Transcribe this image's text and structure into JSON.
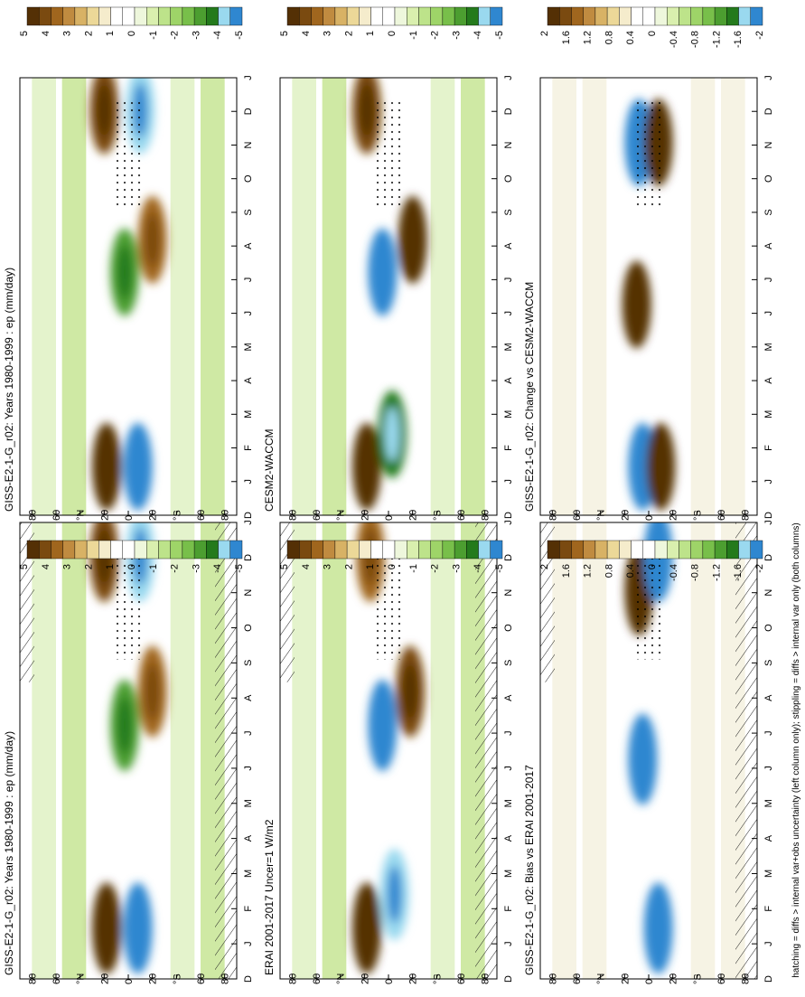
{
  "footnote": "hatching = diffs > internal var+obs uncertainty (left column only); stippling = diffs > internal var only (both columns)",
  "month_ticks": [
    "D",
    "J",
    "F",
    "M",
    "A",
    "M",
    "J",
    "J",
    "A",
    "S",
    "O",
    "N",
    "D",
    "J"
  ],
  "lat_ticks": [
    "80",
    "60",
    "°N",
    "20",
    "0",
    "20",
    "°S",
    "60",
    "80"
  ],
  "colorbars": {
    "mean": {
      "labels": [
        "5",
        "4",
        "3",
        "2",
        "1",
        "0",
        "-1",
        "-2",
        "-3",
        "-4",
        "-5"
      ],
      "colors": [
        "#543005",
        "#7a4a10",
        "#a0661e",
        "#c08b40",
        "#d8b265",
        "#ecd898",
        "#f5eccc",
        "#ffffff",
        "#ffffff",
        "#eef7dc",
        "#d9efae",
        "#bde38a",
        "#9ed468",
        "#78bf4a",
        "#4c9e30",
        "#247a1c",
        "#9ad9ef",
        "#2f87d0"
      ]
    },
    "diff": {
      "labels": [
        "2",
        "1.6",
        "1.2",
        "0.8",
        "0.4",
        "0",
        "-0.4",
        "-0.8",
        "-1.2",
        "-1.6",
        "-2"
      ],
      "colors": [
        "#543005",
        "#7a4a10",
        "#a0661e",
        "#c08b40",
        "#d8b265",
        "#ecd898",
        "#f5eccc",
        "#ffffff",
        "#ffffff",
        "#eef7dc",
        "#d9efae",
        "#bde38a",
        "#9ed468",
        "#78bf4a",
        "#4c9e30",
        "#247a1c",
        "#9ad9ef",
        "#2f87d0"
      ]
    }
  },
  "chart_data": [
    {
      "id": "panel-left-top",
      "type": "heatmap",
      "title": "GISS-E2-1-G_r02: Years 1980-1999 : ep (mm/day)",
      "variable": "ep (mm/day)",
      "x": "month (D..J)",
      "y": "latitude",
      "colorbar": "mean",
      "regions": [
        {
          "month": "Jan",
          "lat": 18,
          "value": 4.5
        },
        {
          "month": "Jan",
          "lat": -8,
          "value": -4.5
        },
        {
          "month": "Jul",
          "lat": 3,
          "value": -3
        },
        {
          "month": "Aug",
          "lat": -20,
          "value": 3.5
        },
        {
          "month": "Dec",
          "lat": 20,
          "value": 4
        },
        {
          "month": "Dec",
          "lat": -10,
          "value": -4
        }
      ],
      "hatching": true,
      "stippling": true
    },
    {
      "id": "panel-right-top",
      "type": "heatmap",
      "title": "GISS-E2-1-G_r02: Years 1980-1999 : ep (mm/day)",
      "variable": "ep (mm/day)",
      "x": "month (D..J)",
      "y": "latitude",
      "colorbar": "mean",
      "regions": [
        {
          "month": "Jan",
          "lat": 18,
          "value": 4.5
        },
        {
          "month": "Jan",
          "lat": -8,
          "value": -4.5
        },
        {
          "month": "Jul",
          "lat": 3,
          "value": -3
        },
        {
          "month": "Aug",
          "lat": -20,
          "value": 3.5
        },
        {
          "month": "Dec",
          "lat": 20,
          "value": 4
        },
        {
          "month": "Dec",
          "lat": -10,
          "value": -4
        }
      ],
      "hatching": false,
      "stippling": true
    },
    {
      "id": "panel-left-mid",
      "type": "heatmap",
      "title": "ERAI 2001-2017 Uncer=1 W/m2",
      "x": "month (D..J)",
      "y": "latitude",
      "colorbar": "mean",
      "regions": [
        {
          "month": "Jan",
          "lat": 18,
          "value": 4.5
        },
        {
          "month": "Feb",
          "lat": -5,
          "value": -4
        },
        {
          "month": "Jul",
          "lat": 5,
          "value": -4.5
        },
        {
          "month": "Aug",
          "lat": -18,
          "value": 4
        },
        {
          "month": "Dec",
          "lat": 15,
          "value": 3.5
        }
      ],
      "hatching": true,
      "stippling": true
    },
    {
      "id": "panel-right-mid",
      "type": "heatmap",
      "title": "CESM2-WACCM",
      "x": "month (D..J)",
      "y": "latitude",
      "colorbar": "mean",
      "regions": [
        {
          "month": "Jan",
          "lat": 18,
          "value": 4.5
        },
        {
          "month": "Feb",
          "lat": -3,
          "value": -3.5
        },
        {
          "month": "Jul",
          "lat": 5,
          "value": -5
        },
        {
          "month": "Aug",
          "lat": -20,
          "value": 4.5
        },
        {
          "month": "Dec",
          "lat": 18,
          "value": 4
        }
      ],
      "hatching": false,
      "stippling": true
    },
    {
      "id": "panel-left-bot",
      "type": "heatmap",
      "title": "GISS-E2-1-G_r02: Bias vs ERAI 2001-2017",
      "x": "month (D..J)",
      "y": "latitude",
      "colorbar": "diff",
      "regions": [
        {
          "month": "Jan",
          "lat": -8,
          "value": -2
        },
        {
          "month": "Jun",
          "lat": 5,
          "value": -1.8
        },
        {
          "month": "Nov",
          "lat": 8,
          "value": 2
        },
        {
          "month": "Dec",
          "lat": -8,
          "value": -2
        }
      ],
      "hatching": true,
      "stippling": true
    },
    {
      "id": "panel-right-bot",
      "type": "heatmap",
      "title": "GISS-E2-1-G_r02: Change vs CESM2-WACCM",
      "x": "month (D..J)",
      "y": "latitude",
      "colorbar": "diff",
      "regions": [
        {
          "month": "Jan",
          "lat": 5,
          "value": -2
        },
        {
          "month": "Jan",
          "lat": -10,
          "value": 2
        },
        {
          "month": "Jun",
          "lat": 10,
          "value": 1.8
        },
        {
          "month": "Nov",
          "lat": 8,
          "value": -2
        },
        {
          "month": "Nov",
          "lat": -8,
          "value": 2
        }
      ],
      "hatching": false,
      "stippling": true
    }
  ]
}
